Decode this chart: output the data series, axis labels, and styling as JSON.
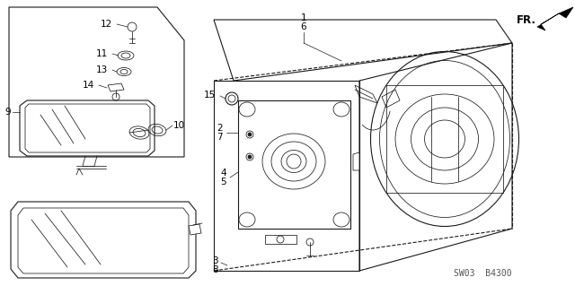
{
  "bg_color": "#ffffff",
  "line_color": "#1a1a1a",
  "watermark": "SW03  B4300",
  "fr_label": "FR.",
  "lw_thick": 1.1,
  "lw_med": 0.8,
  "lw_thin": 0.55
}
